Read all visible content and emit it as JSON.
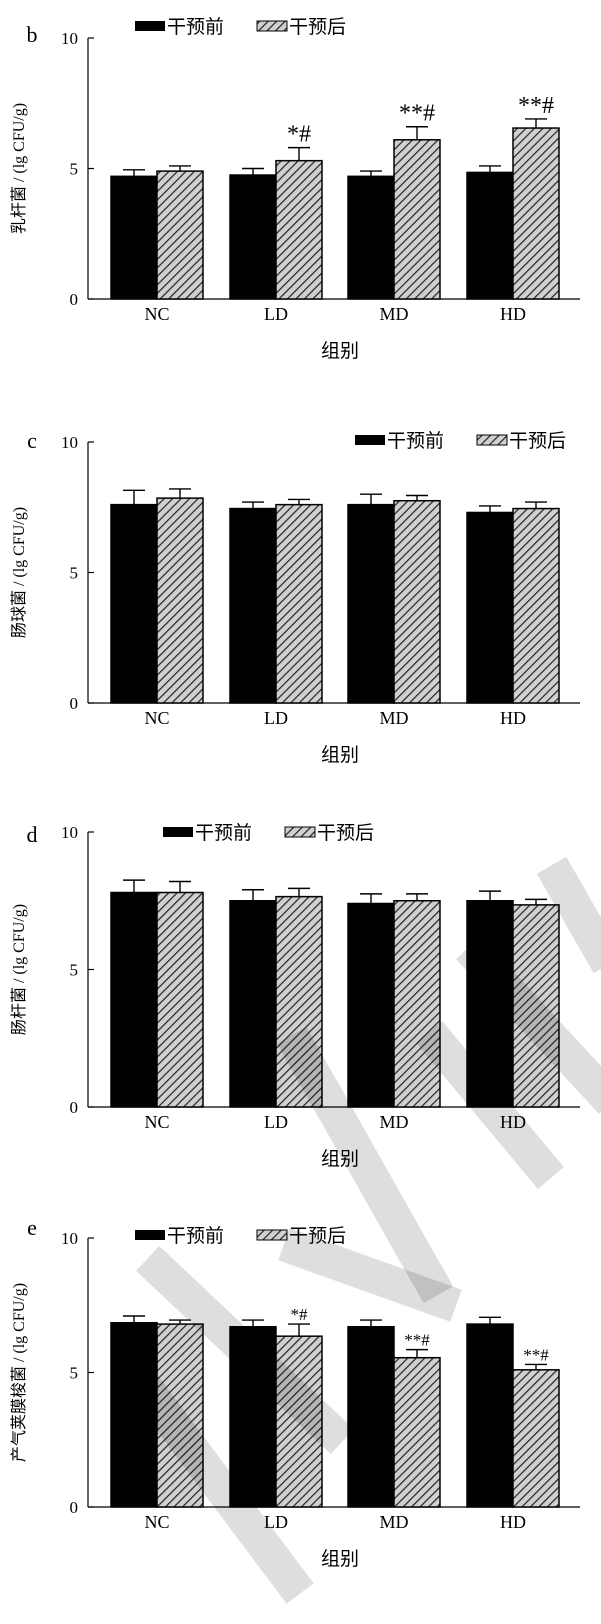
{
  "legend": {
    "before": "干预前",
    "after": "干预后"
  },
  "xlabel": "组别",
  "chart_data": [
    {
      "panel": "b",
      "type": "bar",
      "ylabel": "乳杆菌 / (lg CFU/g)",
      "xlabel": "组别",
      "categories": [
        "NC",
        "LD",
        "MD",
        "HD"
      ],
      "ylim": [
        0,
        10
      ],
      "yticks": [
        0,
        5,
        10
      ],
      "legend_position": "top-left",
      "series": [
        {
          "name": "干预前",
          "values": [
            4.7,
            4.75,
            4.7,
            4.85
          ],
          "errors": [
            0.25,
            0.25,
            0.2,
            0.25
          ]
        },
        {
          "name": "干预后",
          "values": [
            4.9,
            5.3,
            6.1,
            6.55
          ],
          "errors": [
            0.2,
            0.5,
            0.5,
            0.35
          ]
        }
      ],
      "annotations": [
        "",
        "*#",
        "**#",
        "**#"
      ]
    },
    {
      "panel": "c",
      "type": "bar",
      "ylabel": "肠球菌 / (lg CFU/g)",
      "xlabel": "组别",
      "categories": [
        "NC",
        "LD",
        "MD",
        "HD"
      ],
      "ylim": [
        0,
        10
      ],
      "yticks": [
        0,
        5,
        10
      ],
      "legend_position": "top-right",
      "series": [
        {
          "name": "干预前",
          "values": [
            7.6,
            7.45,
            7.6,
            7.3
          ],
          "errors": [
            0.55,
            0.25,
            0.4,
            0.25
          ]
        },
        {
          "name": "干预后",
          "values": [
            7.85,
            7.6,
            7.75,
            7.45
          ],
          "errors": [
            0.35,
            0.2,
            0.2,
            0.25
          ]
        }
      ],
      "annotations": [
        "",
        "",
        "",
        ""
      ]
    },
    {
      "panel": "d",
      "type": "bar",
      "ylabel": "肠杆菌 / (lg CFU/g)",
      "xlabel": "组别",
      "categories": [
        "NC",
        "LD",
        "MD",
        "HD"
      ],
      "ylim": [
        0,
        10
      ],
      "yticks": [
        0,
        5,
        10
      ],
      "legend_position": "top-center",
      "series": [
        {
          "name": "干预前",
          "values": [
            7.8,
            7.5,
            7.4,
            7.5
          ],
          "errors": [
            0.45,
            0.4,
            0.35,
            0.35
          ]
        },
        {
          "name": "干预后",
          "values": [
            7.8,
            7.65,
            7.5,
            7.35
          ],
          "errors": [
            0.4,
            0.3,
            0.25,
            0.2
          ]
        }
      ],
      "annotations": [
        "",
        "",
        "",
        ""
      ]
    },
    {
      "panel": "e",
      "type": "bar",
      "ylabel": "产气荚膜梭菌 / (lg CFU/g)",
      "xlabel": "组别",
      "categories": [
        "NC",
        "LD",
        "MD",
        "HD"
      ],
      "ylim": [
        0,
        10
      ],
      "yticks": [
        0,
        5,
        10
      ],
      "legend_position": "top-left",
      "series": [
        {
          "name": "干预前",
          "values": [
            6.85,
            6.7,
            6.7,
            6.8
          ],
          "errors": [
            0.25,
            0.25,
            0.25,
            0.25
          ]
        },
        {
          "name": "干预后",
          "values": [
            6.8,
            6.35,
            5.55,
            5.1
          ],
          "errors": [
            0.15,
            0.45,
            0.3,
            0.2
          ]
        }
      ],
      "annotations": [
        "",
        "*#",
        "**#",
        "**#"
      ]
    }
  ]
}
